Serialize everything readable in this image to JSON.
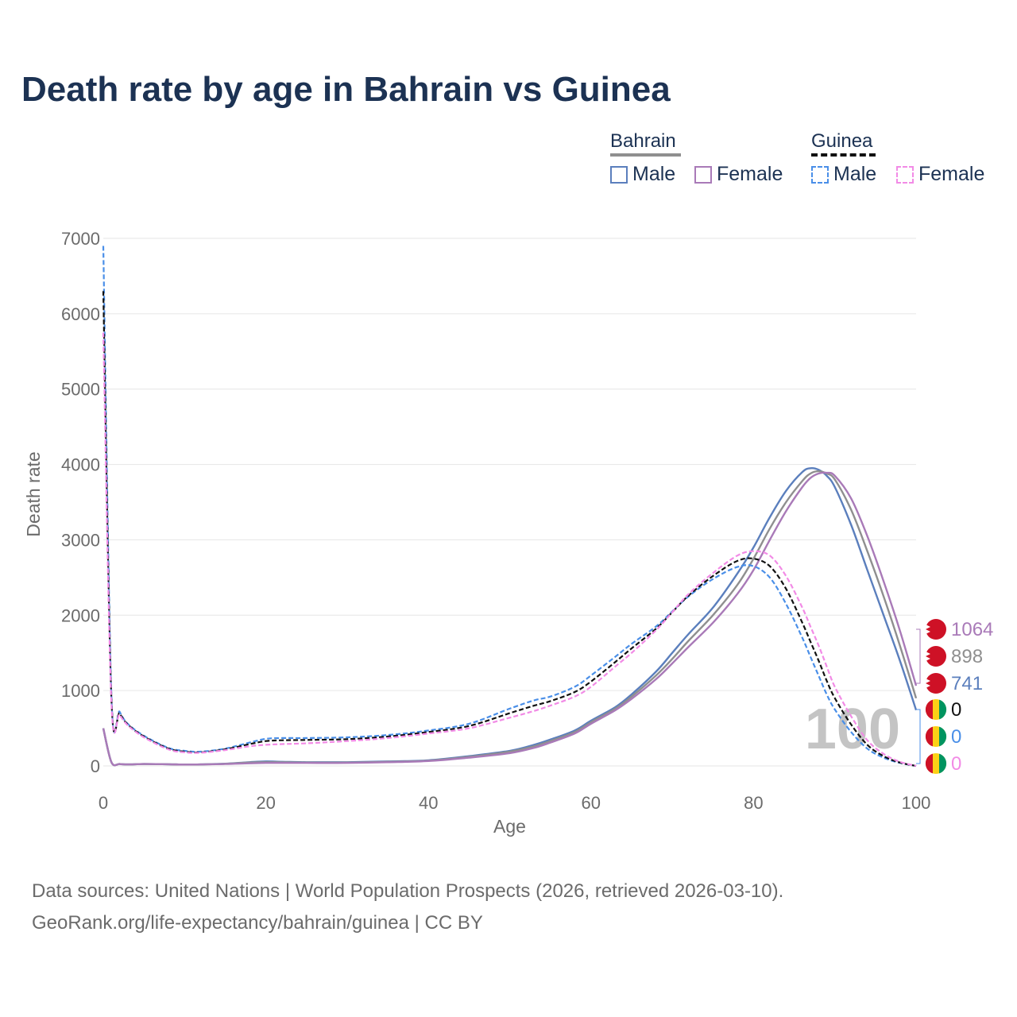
{
  "title": "Death rate by age in Bahrain vs Guinea",
  "legend": {
    "group_a": {
      "name": "Bahrain",
      "male_label": "Male",
      "female_label": "Female"
    },
    "group_b": {
      "name": "Guinea",
      "male_label": "Male",
      "female_label": "Female"
    }
  },
  "colors": {
    "bahrain_male": "#5b7fbd",
    "bahrain_female": "#a97ab8",
    "bahrain_total": "#8f8f8f",
    "guinea_male": "#4a8fe8",
    "guinea_female": "#f28be6",
    "guinea_total": "#111111",
    "title": "#1c3253",
    "grid": "#e6e6e6"
  },
  "source": {
    "line1": "Data sources: United Nations | World Population Prospects (2026, retrieved 2026-03-10).",
    "line2": "GeoRank.org/life-expectancy/bahrain/guinea | CC BY"
  },
  "chart_data": {
    "type": "line",
    "title": "Death rate by age in Bahrain vs Guinea",
    "xlabel": "Age",
    "ylabel": "Death rate",
    "xlim": [
      0,
      100
    ],
    "ylim": [
      0,
      7000
    ],
    "x_ticks": [
      "0",
      "20",
      "40",
      "60",
      "80",
      "100"
    ],
    "y_ticks": [
      "0",
      "1000",
      "2000",
      "3000",
      "4000",
      "5000",
      "6000",
      "7000"
    ],
    "current_age_label": "100",
    "x": [
      0,
      1,
      2,
      3,
      5,
      8,
      10,
      12,
      15,
      18,
      20,
      22,
      25,
      30,
      35,
      40,
      45,
      50,
      53,
      55,
      58,
      60,
      63,
      65,
      68,
      70,
      72,
      75,
      78,
      80,
      82,
      84,
      86,
      87,
      88,
      89,
      90,
      92,
      94,
      96,
      98,
      100
    ],
    "series": [
      {
        "key": "bahrain_male",
        "name": "Bahrain Male",
        "dashed": false,
        "values": [
          500,
          50,
          25,
          20,
          25,
          22,
          18,
          20,
          30,
          50,
          60,
          55,
          50,
          50,
          60,
          75,
          130,
          200,
          280,
          350,
          470,
          600,
          780,
          950,
          1250,
          1500,
          1750,
          2100,
          2550,
          2900,
          3300,
          3650,
          3900,
          3950,
          3930,
          3850,
          3700,
          3200,
          2600,
          2000,
          1400,
          741
        ]
      },
      {
        "key": "bahrain_total",
        "name": "Bahrain Total",
        "dashed": false,
        "values": [
          500,
          50,
          25,
          20,
          25,
          22,
          18,
          20,
          28,
          45,
          50,
          48,
          45,
          45,
          55,
          70,
          120,
          190,
          260,
          330,
          450,
          580,
          760,
          920,
          1200,
          1420,
          1660,
          2000,
          2400,
          2750,
          3150,
          3500,
          3780,
          3880,
          3910,
          3880,
          3800,
          3400,
          2850,
          2250,
          1600,
          898
        ]
      },
      {
        "key": "bahrain_female",
        "name": "Bahrain Female",
        "dashed": false,
        "values": [
          500,
          50,
          25,
          20,
          25,
          22,
          18,
          20,
          25,
          35,
          40,
          40,
          40,
          40,
          50,
          65,
          110,
          170,
          240,
          310,
          430,
          560,
          740,
          890,
          1150,
          1360,
          1580,
          1900,
          2280,
          2600,
          3000,
          3380,
          3700,
          3820,
          3880,
          3890,
          3850,
          3550,
          3050,
          2450,
          1800,
          1064
        ]
      },
      {
        "key": "guinea_male",
        "name": "Guinea Male",
        "dashed": true,
        "values": [
          6900,
          950,
          720,
          560,
          400,
          240,
          200,
          190,
          230,
          310,
          360,
          370,
          370,
          380,
          410,
          470,
          560,
          760,
          870,
          920,
          1050,
          1200,
          1450,
          1620,
          1850,
          2050,
          2250,
          2480,
          2640,
          2650,
          2500,
          2150,
          1700,
          1450,
          1200,
          950,
          750,
          450,
          230,
          110,
          40,
          0
        ]
      },
      {
        "key": "guinea_total",
        "name": "Guinea Total",
        "dashed": true,
        "values": [
          6300,
          900,
          700,
          550,
          390,
          230,
          190,
          180,
          220,
          290,
          330,
          340,
          345,
          355,
          390,
          450,
          530,
          700,
          800,
          860,
          980,
          1120,
          1380,
          1560,
          1820,
          2040,
          2260,
          2520,
          2720,
          2750,
          2650,
          2350,
          1900,
          1650,
          1400,
          1130,
          900,
          550,
          280,
          130,
          45,
          0
        ]
      },
      {
        "key": "guinea_female",
        "name": "Guinea Female",
        "dashed": true,
        "values": [
          5750,
          850,
          680,
          540,
          380,
          220,
          180,
          175,
          210,
          260,
          280,
          290,
          300,
          330,
          370,
          430,
          500,
          640,
          730,
          800,
          920,
          1050,
          1320,
          1500,
          1800,
          2040,
          2280,
          2560,
          2790,
          2850,
          2790,
          2520,
          2100,
          1850,
          1600,
          1320,
          1050,
          660,
          340,
          160,
          55,
          0
        ]
      }
    ],
    "end_labels": [
      {
        "series": "bahrain_female",
        "country": "Bahrain",
        "value": "1064"
      },
      {
        "series": "bahrain_total",
        "country": "Bahrain",
        "value": "898"
      },
      {
        "series": "bahrain_male",
        "country": "Bahrain",
        "value": "741"
      },
      {
        "series": "guinea_total",
        "country": "Guinea",
        "value": "0"
      },
      {
        "series": "guinea_male",
        "country": "Guinea",
        "value": "0"
      },
      {
        "series": "guinea_female",
        "country": "Guinea",
        "value": "0"
      }
    ]
  }
}
